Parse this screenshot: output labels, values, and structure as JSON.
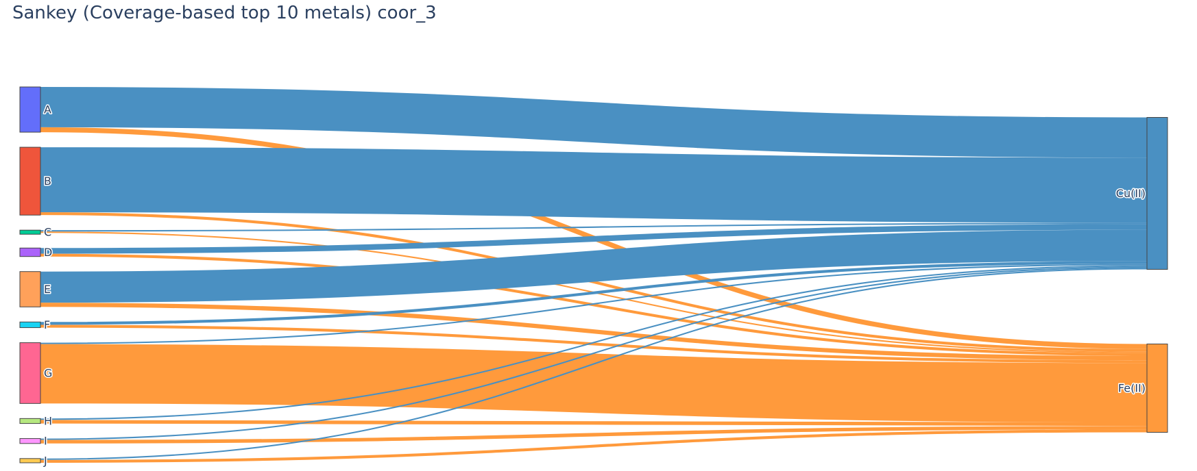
{
  "chart_data": {
    "type": "sankey",
    "title": "Sankey (Coverage-based top 10 metals) coor_3",
    "sources": [
      {
        "label": "A",
        "color": "#636efa"
      },
      {
        "label": "B",
        "color": "#ef553b"
      },
      {
        "label": "C",
        "color": "#00cc96"
      },
      {
        "label": "D",
        "color": "#ab63fa"
      },
      {
        "label": "E",
        "color": "#ffa15a"
      },
      {
        "label": "F",
        "color": "#19d3f3"
      },
      {
        "label": "G",
        "color": "#ff6692"
      },
      {
        "label": "H",
        "color": "#b6e880"
      },
      {
        "label": "I",
        "color": "#ff97ff"
      },
      {
        "label": "J",
        "color": "#fecb52"
      }
    ],
    "targets": [
      {
        "label": "Cu(II)",
        "color": "#4a90c2"
      },
      {
        "label": "Fe(II)",
        "color": "#ff9a3c"
      }
    ],
    "links": [
      {
        "source": "A",
        "target": "Cu(II)",
        "value": 57
      },
      {
        "source": "A",
        "target": "Fe(II)",
        "value": 7
      },
      {
        "source": "B",
        "target": "Cu(II)",
        "value": 92
      },
      {
        "source": "B",
        "target": "Fe(II)",
        "value": 4
      },
      {
        "source": "C",
        "target": "Cu(II)",
        "value": 2
      },
      {
        "source": "C",
        "target": "Fe(II)",
        "value": 2
      },
      {
        "source": "D",
        "target": "Cu(II)",
        "value": 8
      },
      {
        "source": "D",
        "target": "Fe(II)",
        "value": 4
      },
      {
        "source": "E",
        "target": "Cu(II)",
        "value": 44
      },
      {
        "source": "E",
        "target": "Fe(II)",
        "value": 6
      },
      {
        "source": "F",
        "target": "Cu(II)",
        "value": 4
      },
      {
        "source": "F",
        "target": "Fe(II)",
        "value": 4
      },
      {
        "source": "G",
        "target": "Cu(II)",
        "value": 2
      },
      {
        "source": "G",
        "target": "Fe(II)",
        "value": 84
      },
      {
        "source": "H",
        "target": "Cu(II)",
        "value": 2
      },
      {
        "source": "H",
        "target": "Fe(II)",
        "value": 5
      },
      {
        "source": "I",
        "target": "Cu(II)",
        "value": 2
      },
      {
        "source": "I",
        "target": "Fe(II)",
        "value": 5
      },
      {
        "source": "J",
        "target": "Cu(II)",
        "value": 2
      },
      {
        "source": "J",
        "target": "Fe(II)",
        "value": 4
      }
    ]
  }
}
